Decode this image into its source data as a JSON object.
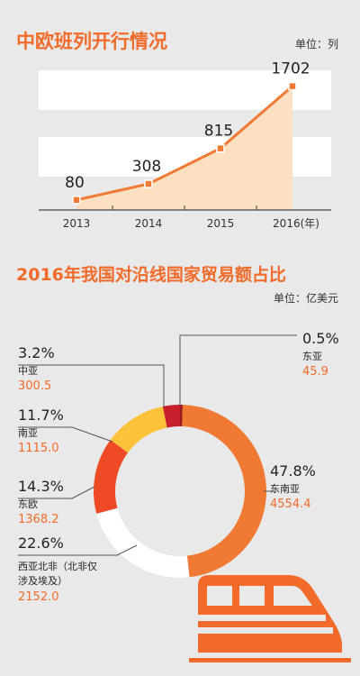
{
  "line_chart": {
    "title": "中欧班列开行情况",
    "unit": "单位：列",
    "x_unit_suffix": "(年)"
  },
  "donut_chart": {
    "title": "2016年我国对沿线国家贸易额占比",
    "unit": "单位：亿美元"
  },
  "colors": {
    "accent": "#f26b2a",
    "line": "#f07a33",
    "area": "#fde0c2",
    "band": "#ffffff",
    "background": "#e9e9e9"
  },
  "chart_data": [
    {
      "type": "area",
      "title": "中欧班列开行情况",
      "x": [
        "2013",
        "2014",
        "2015",
        "2016"
      ],
      "values": [
        80,
        308,
        815,
        1702
      ],
      "unit": "列",
      "ylim": [
        0,
        1800
      ],
      "grid": false
    },
    {
      "type": "pie",
      "title": "2016年我国对沿线国家贸易额占比",
      "unit": "亿美元",
      "slices": [
        {
          "name": "东亚",
          "percent": "0.5%",
          "value": "45.9",
          "share": 0.5,
          "color": "#9a1b1b"
        },
        {
          "name": "东南亚",
          "percent": "47.8%",
          "value": "4554.4",
          "share": 47.8,
          "color": "#f07a33"
        },
        {
          "name": "西亚北非（北非仅涉及埃及）",
          "percent": "22.6%",
          "value": "2152.0",
          "share": 22.6,
          "color": "#ffffff"
        },
        {
          "name": "东欧",
          "percent": "14.3%",
          "value": "1368.2",
          "share": 14.3,
          "color": "#ef4a26"
        },
        {
          "name": "南亚",
          "percent": "11.7%",
          "value": "1115.0",
          "share": 11.7,
          "color": "#fbc23a"
        },
        {
          "name": "中亚",
          "percent": "3.2%",
          "value": "300.5",
          "share": 3.2,
          "color": "#c8202a"
        }
      ]
    }
  ]
}
